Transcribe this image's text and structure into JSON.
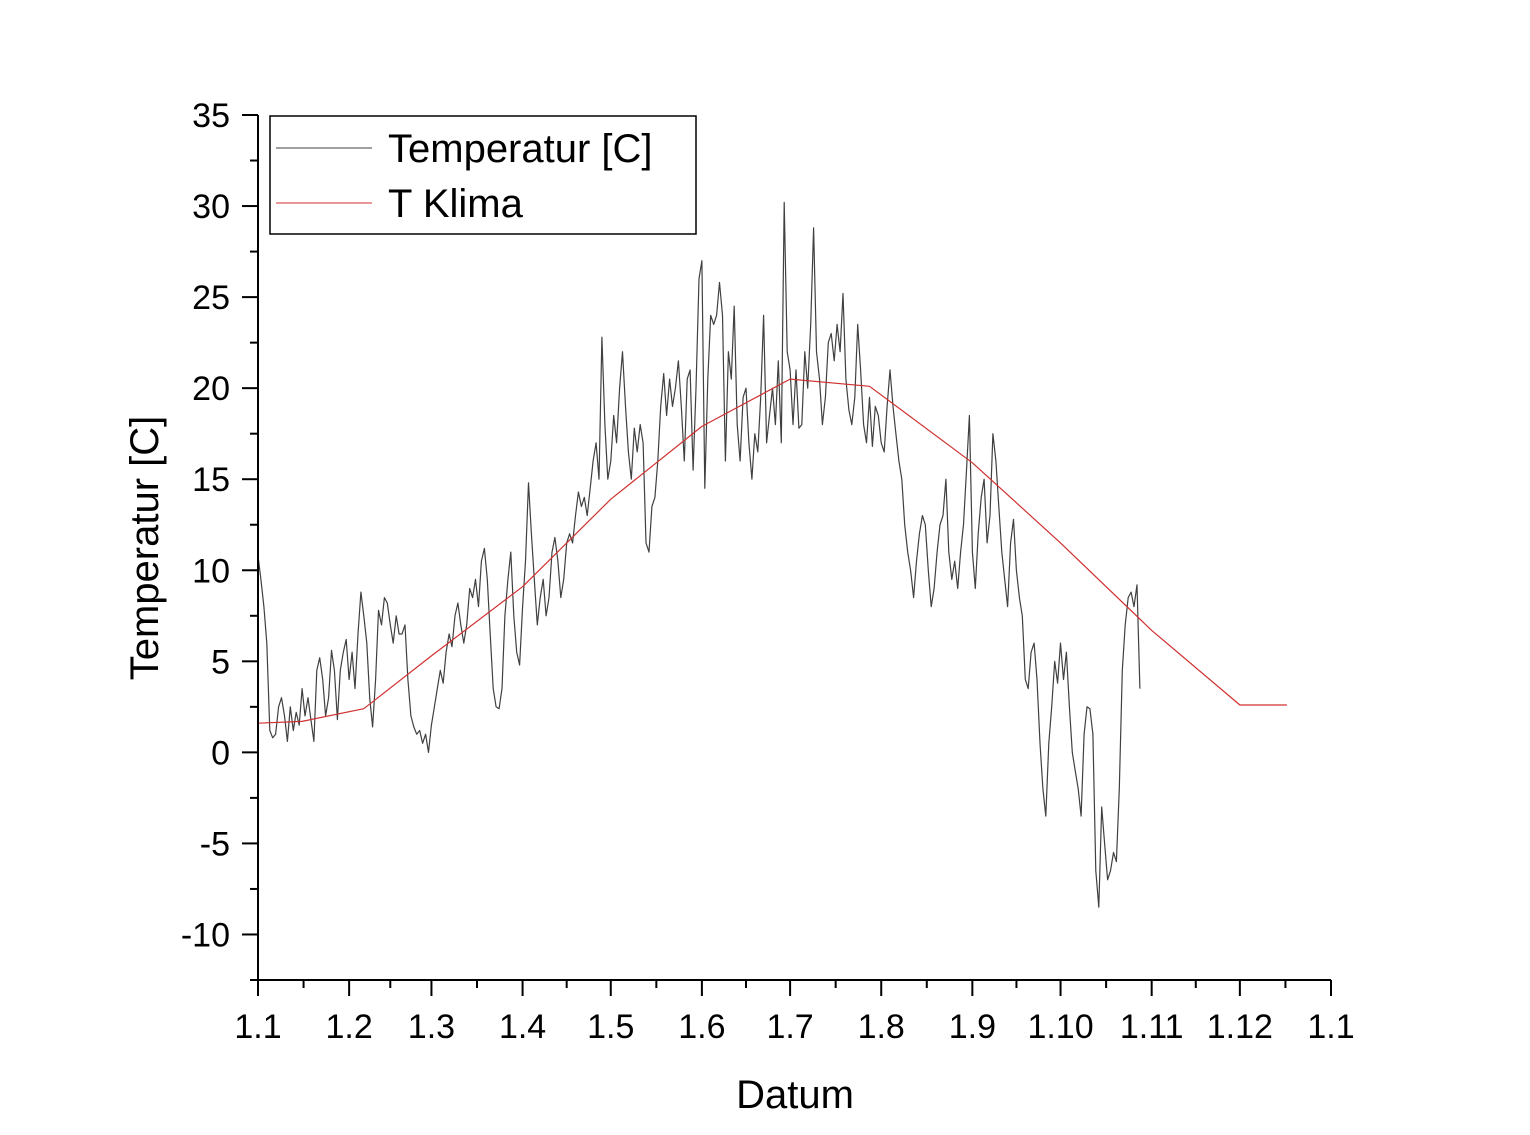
{
  "chart_data": {
    "type": "line",
    "xlabel": "Datum",
    "ylabel": "Temperatur [C]",
    "x_tick_labels": [
      "1.1",
      "1.2",
      "1.3",
      "1.4",
      "1.5",
      "1.6",
      "1.7",
      "1.8",
      "1.9",
      "1.10",
      "1.11",
      "1.12",
      "1.1"
    ],
    "x_tick_days": [
      0,
      31,
      59,
      90,
      120,
      151,
      181,
      212,
      243,
      273,
      304,
      334,
      365
    ],
    "y_ticks": [
      -10,
      -5,
      0,
      5,
      10,
      15,
      20,
      25,
      30,
      35
    ],
    "ylim": [
      -12.5,
      35
    ],
    "xlim": [
      0,
      365
    ],
    "legend_position": "top-left",
    "grid": false,
    "series": [
      {
        "name": "Temperatur [C]",
        "color": "#404040",
        "points": [
          [
            0,
            10.8
          ],
          [
            1,
            9.5
          ],
          [
            2,
            8.0
          ],
          [
            3,
            6.0
          ],
          [
            4,
            1.2
          ],
          [
            5,
            0.8
          ],
          [
            6,
            1.0
          ],
          [
            7,
            2.5
          ],
          [
            8,
            3.0
          ],
          [
            9,
            2.0
          ],
          [
            10,
            0.6
          ],
          [
            11,
            2.5
          ],
          [
            12,
            1.2
          ],
          [
            13,
            2.2
          ],
          [
            14,
            1.5
          ],
          [
            15,
            3.5
          ],
          [
            16,
            2.0
          ],
          [
            17,
            3.0
          ],
          [
            18,
            1.8
          ],
          [
            19,
            0.6
          ],
          [
            20,
            4.5
          ],
          [
            21,
            5.2
          ],
          [
            22,
            4.0
          ],
          [
            23,
            2.0
          ],
          [
            24,
            3.0
          ],
          [
            25,
            5.6
          ],
          [
            26,
            4.5
          ],
          [
            27,
            1.8
          ],
          [
            28,
            4.5
          ],
          [
            29,
            5.5
          ],
          [
            30,
            6.2
          ],
          [
            31,
            4.0
          ],
          [
            32,
            5.5
          ],
          [
            33,
            3.5
          ],
          [
            34,
            6.5
          ],
          [
            35,
            8.8
          ],
          [
            36,
            7.5
          ],
          [
            37,
            6.0
          ],
          [
            38,
            3.0
          ],
          [
            39,
            1.4
          ],
          [
            40,
            4.0
          ],
          [
            41,
            7.8
          ],
          [
            42,
            7.0
          ],
          [
            43,
            8.5
          ],
          [
            44,
            8.2
          ],
          [
            45,
            7.0
          ],
          [
            46,
            6.0
          ],
          [
            47,
            7.5
          ],
          [
            48,
            6.5
          ],
          [
            49,
            6.5
          ],
          [
            50,
            7.0
          ],
          [
            51,
            4.0
          ],
          [
            52,
            2.0
          ],
          [
            53,
            1.4
          ],
          [
            54,
            1.0
          ],
          [
            55,
            1.2
          ],
          [
            56,
            0.5
          ],
          [
            57,
            1.0
          ],
          [
            58,
            0.0
          ],
          [
            59,
            1.5
          ],
          [
            60,
            2.5
          ],
          [
            61,
            3.5
          ],
          [
            62,
            4.5
          ],
          [
            63,
            3.8
          ],
          [
            64,
            5.5
          ],
          [
            65,
            6.5
          ],
          [
            66,
            5.8
          ],
          [
            67,
            7.5
          ],
          [
            68,
            8.2
          ],
          [
            69,
            7.0
          ],
          [
            70,
            6.0
          ],
          [
            71,
            7.0
          ],
          [
            72,
            9.0
          ],
          [
            73,
            8.5
          ],
          [
            74,
            9.5
          ],
          [
            75,
            8.0
          ],
          [
            76,
            10.5
          ],
          [
            77,
            11.2
          ],
          [
            78,
            9.5
          ],
          [
            79,
            6.5
          ],
          [
            80,
            3.5
          ],
          [
            81,
            2.5
          ],
          [
            82,
            2.4
          ],
          [
            83,
            3.5
          ],
          [
            84,
            7.5
          ],
          [
            85,
            9.5
          ],
          [
            86,
            11.0
          ],
          [
            87,
            7.5
          ],
          [
            88,
            5.5
          ],
          [
            89,
            4.8
          ],
          [
            90,
            8.0
          ],
          [
            91,
            10.5
          ],
          [
            92,
            14.8
          ],
          [
            93,
            12.0
          ],
          [
            94,
            9.5
          ],
          [
            95,
            7.0
          ],
          [
            96,
            8.5
          ],
          [
            97,
            9.5
          ],
          [
            98,
            7.5
          ],
          [
            99,
            8.5
          ],
          [
            100,
            11.0
          ],
          [
            101,
            11.8
          ],
          [
            102,
            10.5
          ],
          [
            103,
            8.5
          ],
          [
            104,
            9.5
          ],
          [
            105,
            11.5
          ],
          [
            106,
            12.0
          ],
          [
            107,
            11.5
          ],
          [
            108,
            13.0
          ],
          [
            109,
            14.3
          ],
          [
            110,
            13.5
          ],
          [
            111,
            14.0
          ],
          [
            112,
            13.0
          ],
          [
            113,
            14.5
          ],
          [
            114,
            16.0
          ],
          [
            115,
            17.0
          ],
          [
            116,
            15.0
          ],
          [
            117,
            22.8
          ],
          [
            118,
            18.0
          ],
          [
            119,
            15.0
          ],
          [
            120,
            16.0
          ],
          [
            121,
            18.5
          ],
          [
            122,
            17.0
          ],
          [
            123,
            20.0
          ],
          [
            124,
            22.0
          ],
          [
            125,
            19.0
          ],
          [
            126,
            16.5
          ],
          [
            127,
            15.0
          ],
          [
            128,
            17.8
          ],
          [
            129,
            16.5
          ],
          [
            130,
            18.0
          ],
          [
            131,
            17.0
          ],
          [
            132,
            11.5
          ],
          [
            133,
            11.0
          ],
          [
            134,
            13.5
          ],
          [
            135,
            14.0
          ],
          [
            136,
            16.0
          ],
          [
            137,
            19.0
          ],
          [
            138,
            20.8
          ],
          [
            139,
            18.5
          ],
          [
            140,
            20.5
          ],
          [
            141,
            19.0
          ],
          [
            142,
            20.0
          ],
          [
            143,
            21.5
          ],
          [
            144,
            19.0
          ],
          [
            145,
            16.0
          ],
          [
            146,
            20.5
          ],
          [
            147,
            21.0
          ],
          [
            148,
            15.5
          ],
          [
            149,
            20.0
          ],
          [
            150,
            26.0
          ],
          [
            151,
            27.0
          ],
          [
            152,
            14.5
          ],
          [
            153,
            20.5
          ],
          [
            154,
            24.0
          ],
          [
            155,
            23.5
          ],
          [
            156,
            24.0
          ],
          [
            157,
            25.8
          ],
          [
            158,
            24.0
          ],
          [
            159,
            16.0
          ],
          [
            160,
            22.0
          ],
          [
            161,
            20.5
          ],
          [
            162,
            24.5
          ],
          [
            163,
            18.0
          ],
          [
            164,
            16.0
          ],
          [
            165,
            19.5
          ],
          [
            166,
            20.0
          ],
          [
            167,
            17.0
          ],
          [
            168,
            15.0
          ],
          [
            169,
            17.5
          ],
          [
            170,
            16.5
          ],
          [
            171,
            19.5
          ],
          [
            172,
            24.0
          ],
          [
            173,
            17.0
          ],
          [
            174,
            18.5
          ],
          [
            175,
            20.0
          ],
          [
            176,
            18.0
          ],
          [
            177,
            21.5
          ],
          [
            178,
            17.0
          ],
          [
            179,
            30.2
          ],
          [
            180,
            22.0
          ],
          [
            181,
            21.0
          ],
          [
            182,
            18.0
          ],
          [
            183,
            21.0
          ],
          [
            184,
            17.8
          ],
          [
            185,
            18.0
          ],
          [
            186,
            22.0
          ],
          [
            187,
            20.0
          ],
          [
            188,
            23.5
          ],
          [
            189,
            28.8
          ],
          [
            190,
            22.0
          ],
          [
            191,
            20.5
          ],
          [
            192,
            18.0
          ],
          [
            193,
            19.5
          ],
          [
            194,
            22.5
          ],
          [
            195,
            23.0
          ],
          [
            196,
            21.5
          ],
          [
            197,
            23.5
          ],
          [
            198,
            22.0
          ],
          [
            199,
            25.2
          ],
          [
            200,
            20.5
          ],
          [
            201,
            18.8
          ],
          [
            202,
            18.0
          ],
          [
            203,
            19.5
          ],
          [
            204,
            23.5
          ],
          [
            205,
            21.0
          ],
          [
            206,
            18.0
          ],
          [
            207,
            17.0
          ],
          [
            208,
            19.5
          ],
          [
            209,
            16.8
          ],
          [
            210,
            19.0
          ],
          [
            211,
            18.5
          ],
          [
            212,
            17.0
          ],
          [
            213,
            16.5
          ],
          [
            214,
            19.0
          ],
          [
            215,
            21.0
          ],
          [
            216,
            19.0
          ],
          [
            217,
            17.5
          ],
          [
            218,
            16.0
          ],
          [
            219,
            15.0
          ],
          [
            220,
            12.5
          ],
          [
            221,
            11.0
          ],
          [
            222,
            10.0
          ],
          [
            223,
            8.5
          ],
          [
            224,
            10.5
          ],
          [
            225,
            12.0
          ],
          [
            226,
            13.0
          ],
          [
            227,
            12.5
          ],
          [
            228,
            10.0
          ],
          [
            229,
            8.0
          ],
          [
            230,
            9.0
          ],
          [
            231,
            11.0
          ],
          [
            232,
            12.5
          ],
          [
            233,
            13.0
          ],
          [
            234,
            15.0
          ],
          [
            235,
            11.0
          ],
          [
            236,
            9.5
          ],
          [
            237,
            10.5
          ],
          [
            238,
            9.0
          ],
          [
            239,
            11.0
          ],
          [
            240,
            12.5
          ],
          [
            241,
            15.5
          ],
          [
            242,
            18.5
          ],
          [
            243,
            11.0
          ],
          [
            244,
            9.0
          ],
          [
            245,
            12.0
          ],
          [
            246,
            14.0
          ],
          [
            247,
            15.0
          ],
          [
            248,
            11.5
          ],
          [
            249,
            13.0
          ],
          [
            250,
            17.5
          ],
          [
            251,
            16.0
          ],
          [
            252,
            13.5
          ],
          [
            253,
            11.0
          ],
          [
            254,
            9.5
          ],
          [
            255,
            8.0
          ],
          [
            256,
            11.5
          ],
          [
            257,
            12.8
          ],
          [
            258,
            10.0
          ],
          [
            259,
            8.5
          ],
          [
            260,
            7.5
          ],
          [
            261,
            4.0
          ],
          [
            262,
            3.5
          ],
          [
            263,
            5.5
          ],
          [
            264,
            6.0
          ],
          [
            265,
            4.0
          ],
          [
            266,
            0.5
          ],
          [
            267,
            -2.0
          ],
          [
            268,
            -3.5
          ],
          [
            269,
            0.5
          ],
          [
            270,
            2.5
          ],
          [
            271,
            5.0
          ],
          [
            272,
            3.8
          ],
          [
            273,
            6.0
          ],
          [
            274,
            4.0
          ],
          [
            275,
            5.5
          ],
          [
            276,
            2.5
          ],
          [
            277,
            0.0
          ],
          [
            278,
            -1.0
          ],
          [
            279,
            -2.0
          ],
          [
            280,
            -3.5
          ],
          [
            281,
            1.0
          ],
          [
            282,
            2.5
          ],
          [
            283,
            2.4
          ],
          [
            284,
            1.0
          ],
          [
            285,
            -6.5
          ],
          [
            286,
            -8.5
          ],
          [
            287,
            -3.0
          ],
          [
            288,
            -5.0
          ],
          [
            289,
            -7.0
          ],
          [
            290,
            -6.5
          ],
          [
            291,
            -5.5
          ],
          [
            292,
            -6.0
          ],
          [
            293,
            -2.0
          ],
          [
            294,
            4.5
          ],
          [
            295,
            7.0
          ],
          [
            296,
            8.5
          ],
          [
            297,
            8.8
          ],
          [
            298,
            8.0
          ],
          [
            299,
            9.2
          ],
          [
            300,
            3.5
          ]
        ]
      },
      {
        "name": "T Klima",
        "color": "#d03030",
        "points": [
          [
            0,
            1.6
          ],
          [
            15,
            1.7
          ],
          [
            36,
            2.4
          ],
          [
            59,
            5.3
          ],
          [
            90,
            9.1
          ],
          [
            120,
            13.9
          ],
          [
            151,
            17.9
          ],
          [
            181,
            20.5
          ],
          [
            208,
            20.1
          ],
          [
            243,
            15.9
          ],
          [
            273,
            11.5
          ],
          [
            304,
            6.7
          ],
          [
            334,
            2.6
          ],
          [
            350,
            2.6
          ]
        ]
      }
    ]
  }
}
